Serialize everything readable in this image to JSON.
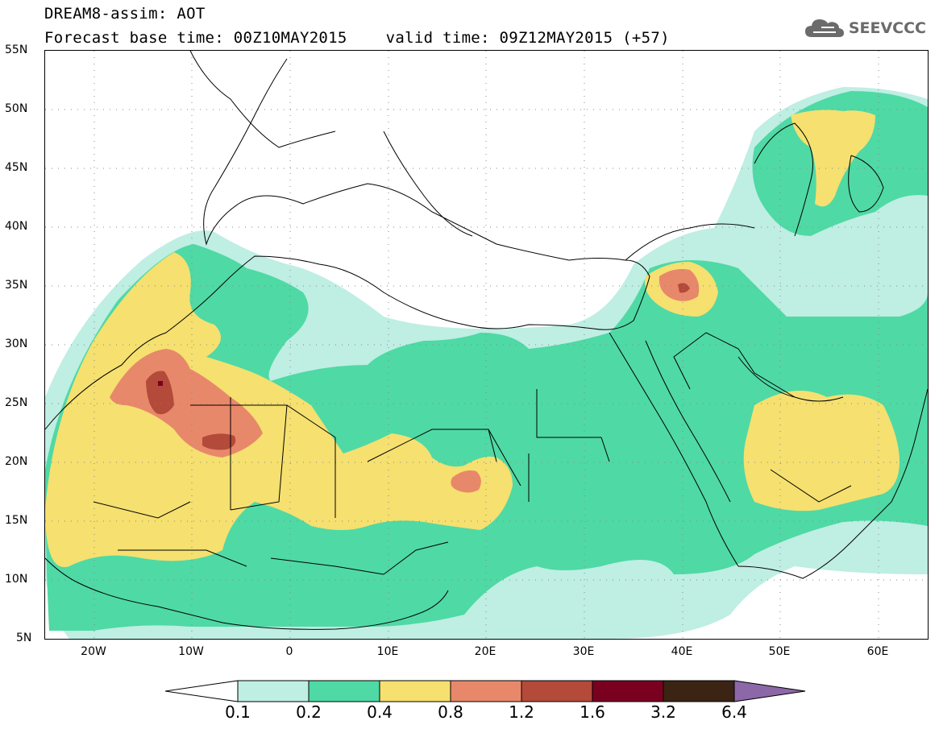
{
  "title": {
    "line1": "DREAM8-assim: AOT",
    "line2_base": "Forecast base time: 00Z10MAY2015",
    "line2_valid": "valid time: 09Z12MAY2015 (+57)"
  },
  "logo": {
    "text": "SEEVCCC",
    "icon": "cloud-icon",
    "color": "#6b6b6b"
  },
  "map": {
    "lon_range": [
      -25,
      65
    ],
    "lat_range": [
      5,
      55
    ],
    "lat_labels": [
      "55N",
      "50N",
      "45N",
      "40N",
      "35N",
      "30N",
      "25N",
      "20N",
      "15N",
      "10N",
      "5N"
    ],
    "lon_labels": [
      "20W",
      "10W",
      "0",
      "10E",
      "20E",
      "30E",
      "40E",
      "50E",
      "60E"
    ],
    "gridlines": "dotted"
  },
  "colorbar": {
    "labels": [
      "0.1",
      "0.2",
      "0.4",
      "0.8",
      "1.2",
      "1.6",
      "3.2",
      "6.4"
    ],
    "colors": [
      "#ffffff",
      "#bfeee3",
      "#4fd9a5",
      "#f5e070",
      "#e8886a",
      "#b34a3a",
      "#7a0020",
      "#3b2414",
      "#8c68a8"
    ]
  }
}
